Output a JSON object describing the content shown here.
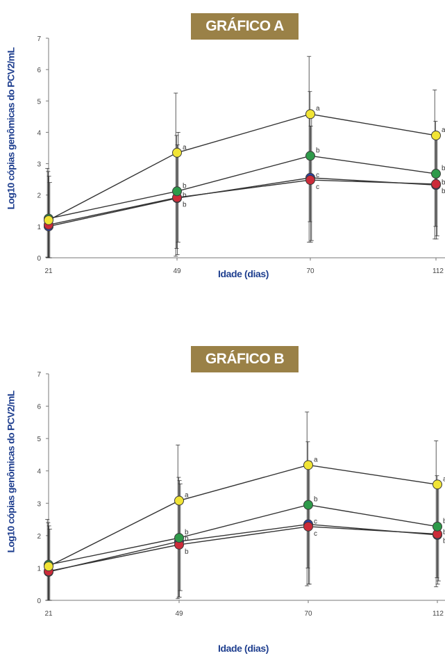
{
  "chart_data": [
    {
      "type": "line",
      "title": "GRÁFICO A",
      "xlabel": "Idade (dias)",
      "ylabel": "Log10 cópias genômicas do PCV2/mL",
      "categories": [
        "21",
        "49",
        "70",
        "112"
      ],
      "ylim": [
        0,
        7
      ],
      "yticks": [
        "0",
        "1",
        "2",
        "3",
        "4",
        "5",
        "6",
        "7"
      ],
      "grid": false,
      "series": [
        {
          "color": "#f1e435",
          "values": [
            1.2,
            3.35,
            4.58,
            3.9
          ],
          "labels": [
            "",
            "a",
            "a",
            "a"
          ],
          "err_hi": [
            2.85,
            5.25,
            6.42,
            5.35
          ],
          "err_lo": [
            0.02,
            0.05,
            0.5,
            0.6
          ]
        },
        {
          "color": "#2e9a4a",
          "values": [
            1.25,
            2.12,
            3.25,
            2.68
          ],
          "labels": [
            "",
            "b",
            "b",
            "b"
          ],
          "err_hi": [
            2.75,
            3.9,
            5.3,
            4.35
          ],
          "err_lo": [
            0.0,
            0.3,
            1.15,
            1.0
          ]
        },
        {
          "color": "#cc2b39",
          "values": [
            1.05,
            1.92,
            2.48,
            2.35
          ],
          "labels": [
            "",
            "b",
            "c",
            "b"
          ],
          "err_hi": [
            2.6,
            3.6,
            4.2,
            3.8
          ],
          "err_lo": [
            0.0,
            0.1,
            0.5,
            0.6
          ]
        },
        {
          "color": "#2b3fa8",
          "values": [
            1.0,
            1.9,
            2.55,
            2.32
          ],
          "labels": [
            "",
            "b",
            "c",
            "b"
          ],
          "err_hi": [
            2.4,
            4.0,
            4.5,
            3.9
          ],
          "err_lo": [
            0.0,
            0.5,
            0.55,
            0.7
          ]
        }
      ]
    },
    {
      "type": "line",
      "title": "GRÁFICO B",
      "xlabel": "Idade (dias)",
      "ylabel": "Log10 cópias genômicas do PCV2/mL",
      "categories": [
        "21",
        "49",
        "70",
        "112"
      ],
      "ylim": [
        0,
        7
      ],
      "yticks": [
        "0",
        "1",
        "2",
        "3",
        "4",
        "5",
        "6",
        "7"
      ],
      "grid": false,
      "series": [
        {
          "color": "#f1e435",
          "values": [
            1.05,
            3.08,
            4.18,
            3.58
          ],
          "labels": [
            "",
            "a",
            "a",
            "a"
          ],
          "err_hi": [
            2.5,
            4.8,
            5.82,
            4.93
          ],
          "err_lo": [
            0.0,
            0.05,
            0.45,
            0.42
          ]
        },
        {
          "color": "#2e9a4a",
          "values": [
            1.1,
            1.93,
            2.95,
            2.28
          ],
          "labels": [
            "",
            "b",
            "b",
            "b"
          ],
          "err_hi": [
            2.4,
            3.8,
            4.9,
            3.85
          ],
          "err_lo": [
            0.0,
            0.1,
            1.0,
            0.7
          ]
        },
        {
          "color": "#cc2b39",
          "values": [
            0.9,
            1.72,
            2.28,
            2.05
          ],
          "labels": [
            "",
            "b",
            "c",
            "b"
          ],
          "err_hi": [
            2.3,
            3.7,
            4.2,
            3.6
          ],
          "err_lo": [
            0.0,
            0.1,
            0.5,
            0.5
          ]
        },
        {
          "color": "#2b3fa8",
          "values": [
            0.88,
            1.82,
            2.35,
            2.02
          ],
          "labels": [
            "",
            "b",
            "c",
            "b"
          ],
          "err_hi": [
            2.2,
            3.6,
            4.3,
            3.5
          ],
          "err_lo": [
            0.0,
            0.3,
            0.5,
            0.6
          ]
        }
      ]
    }
  ]
}
